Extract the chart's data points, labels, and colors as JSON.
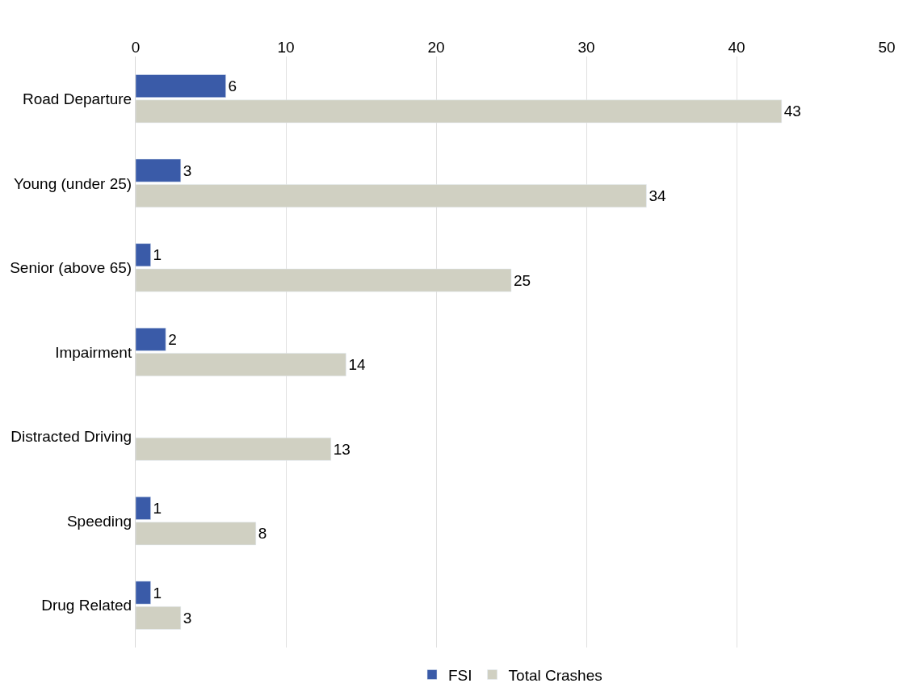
{
  "chart_data": {
    "type": "bar",
    "orientation": "horizontal",
    "categories": [
      "Road Departure",
      "Young (under 25)",
      "Senior (above 65)",
      "Impairment",
      "Distracted Driving",
      "Speeding",
      "Drug Related"
    ],
    "series": [
      {
        "name": "FSI",
        "color": "#3a5ba8",
        "values": [
          6,
          3,
          1,
          2,
          null,
          1,
          1
        ]
      },
      {
        "name": "Total Crashes",
        "color": "#d0d0c2",
        "values": [
          43,
          34,
          25,
          14,
          13,
          8,
          3
        ]
      }
    ],
    "xlim": [
      0,
      50
    ],
    "xticks": [
      0,
      10,
      20,
      30,
      40,
      50
    ],
    "grid": "x",
    "legend": "bottom",
    "data_labels": true
  }
}
